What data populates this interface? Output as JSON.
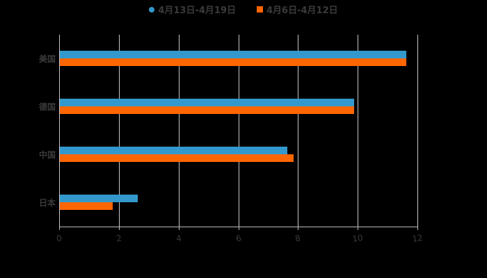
{
  "chart_data": {
    "type": "bar",
    "orientation": "horizontal",
    "title": "",
    "categories": [
      "美国",
      "德国",
      "中国",
      "日本"
    ],
    "series": [
      {
        "name": "4月13日-4月19日",
        "color": "#3399cc",
        "values": [
          11.6,
          9.86,
          7.62,
          2.61
        ]
      },
      {
        "name": "4月6日-4月12日",
        "color": "#ff6600",
        "values": [
          11.6,
          9.86,
          7.83,
          1.77
        ]
      }
    ],
    "xlabel": "",
    "ylabel": "",
    "xlim": [
      0,
      12
    ],
    "xticks": [
      "0",
      "2",
      "4",
      "6",
      "8",
      "10",
      "12"
    ],
    "grid": true,
    "legend_position": "top"
  },
  "legend": {
    "items": [
      {
        "label": "4月13日-4月19日",
        "color": "#3399cc"
      },
      {
        "label": "4月6日-4月12日",
        "color": "#ff6600"
      }
    ]
  }
}
